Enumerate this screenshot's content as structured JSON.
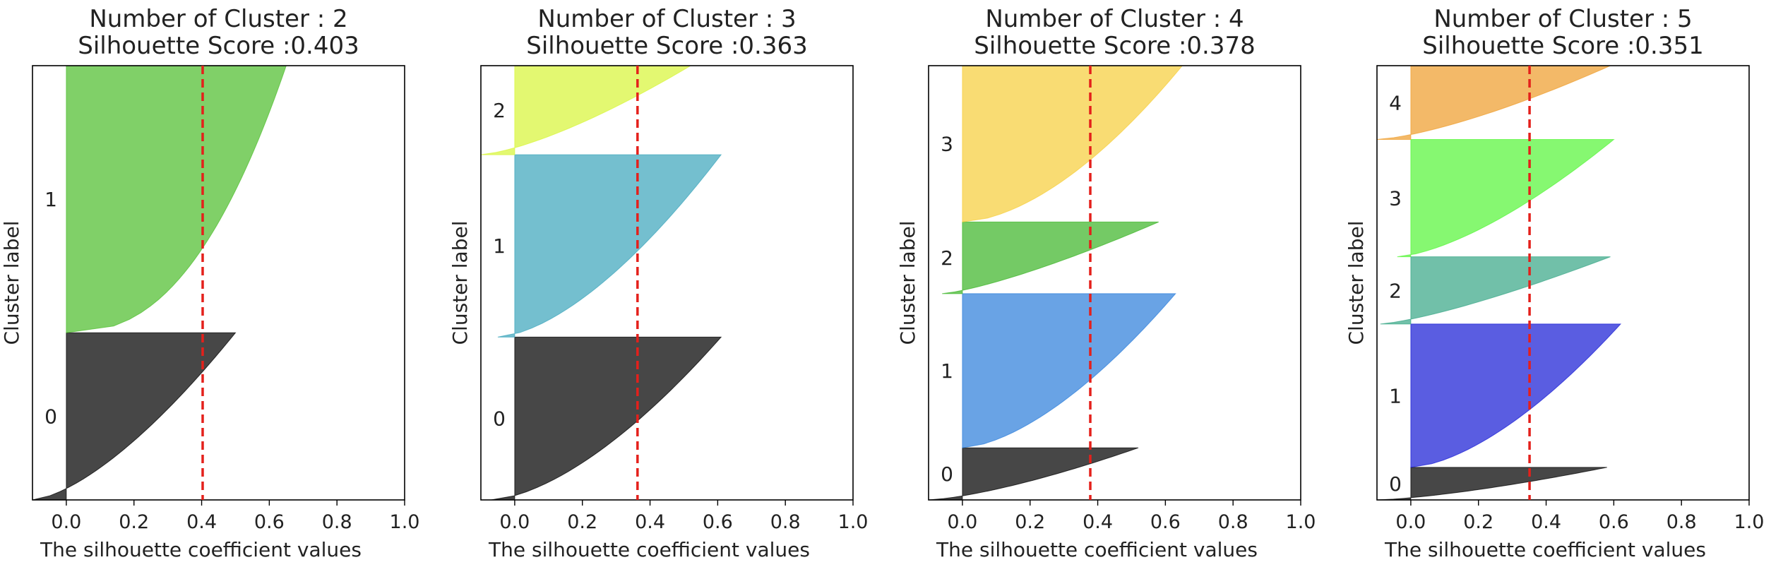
{
  "chart_data": [
    {
      "type": "area",
      "title_line1": "Number of Cluster : 2",
      "title_line2": "Silhouette Score :0.403",
      "xlabel": "The silhouette coefficient values",
      "ylabel": "Cluster label",
      "xlim": [
        -0.1,
        1.0
      ],
      "xticks": [
        "0.0",
        "0.2",
        "0.4",
        "0.6",
        "0.8",
        "1.0"
      ],
      "score": 0.403,
      "clusters": [
        {
          "label": "0",
          "color": "#000000",
          "size": 0.385,
          "max": 0.5,
          "min": -0.1,
          "shape": 1.5
        },
        {
          "label": "1",
          "color": "#4fbe2e",
          "size": 0.615,
          "max": 0.65,
          "min": 0.0,
          "shape": 2.4
        }
      ]
    },
    {
      "type": "area",
      "title_line1": "Number of Cluster : 3",
      "title_line2": "Silhouette Score :0.363",
      "xlabel": "The silhouette coefficient values",
      "ylabel": "Cluster label",
      "xlim": [
        -0.1,
        1.0
      ],
      "xticks": [
        "0.0",
        "0.2",
        "0.4",
        "0.6",
        "0.8",
        "1.0"
      ],
      "score": 0.363,
      "clusters": [
        {
          "label": "0",
          "color": "#000000",
          "size": 0.375,
          "max": 0.61,
          "min": -0.07,
          "shape": 1.6
        },
        {
          "label": "1",
          "color": "#3ea6bd",
          "size": 0.42,
          "max": 0.61,
          "min": -0.05,
          "shape": 1.6
        },
        {
          "label": "2",
          "color": "#d8f53a",
          "size": 0.205,
          "max": 0.52,
          "min": -0.1,
          "shape": 1.4
        }
      ]
    },
    {
      "type": "area",
      "title_line1": "Number of Cluster : 4",
      "title_line2": "Silhouette Score :0.378",
      "xlabel": "The silhouette coefficient values",
      "ylabel": "Cluster label",
      "xlim": [
        -0.1,
        1.0
      ],
      "xticks": [
        "0.0",
        "0.2",
        "0.4",
        "0.6",
        "0.8",
        "1.0"
      ],
      "score": 0.378,
      "clusters": [
        {
          "label": "0",
          "color": "#000000",
          "size": 0.12,
          "max": 0.52,
          "min": -0.1,
          "shape": 1.4
        },
        {
          "label": "1",
          "color": "#2f80db",
          "size": 0.355,
          "max": 0.63,
          "min": 0.0,
          "shape": 1.6
        },
        {
          "label": "2",
          "color": "#3fb52a",
          "size": 0.165,
          "max": 0.58,
          "min": -0.06,
          "shape": 1.3
        },
        {
          "label": "3",
          "color": "#f7cf3d",
          "size": 0.36,
          "max": 0.65,
          "min": 0.0,
          "shape": 1.7
        }
      ]
    },
    {
      "type": "area",
      "title_line1": "Number of Cluster : 5",
      "title_line2": "Silhouette Score :0.351",
      "xlabel": "The silhouette coefficient values",
      "ylabel": "Cluster label",
      "xlim": [
        -0.1,
        1.0
      ],
      "xticks": [
        "0.0",
        "0.2",
        "0.4",
        "0.6",
        "0.8",
        "1.0"
      ],
      "score": 0.351,
      "clusters": [
        {
          "label": "0",
          "color": "#000000",
          "size": 0.075,
          "max": 0.58,
          "min": -0.1,
          "shape": 1.4
        },
        {
          "label": "1",
          "color": "#1a1fd6",
          "size": 0.33,
          "max": 0.62,
          "min": 0.0,
          "shape": 1.6
        },
        {
          "label": "2",
          "color": "#3aa888",
          "size": 0.155,
          "max": 0.59,
          "min": -0.09,
          "shape": 1.3
        },
        {
          "label": "3",
          "color": "#58f53a",
          "size": 0.27,
          "max": 0.6,
          "min": -0.04,
          "shape": 1.5
        },
        {
          "label": "4",
          "color": "#ee9e2e",
          "size": 0.17,
          "max": 0.59,
          "min": -0.1,
          "shape": 1.4
        }
      ]
    }
  ]
}
